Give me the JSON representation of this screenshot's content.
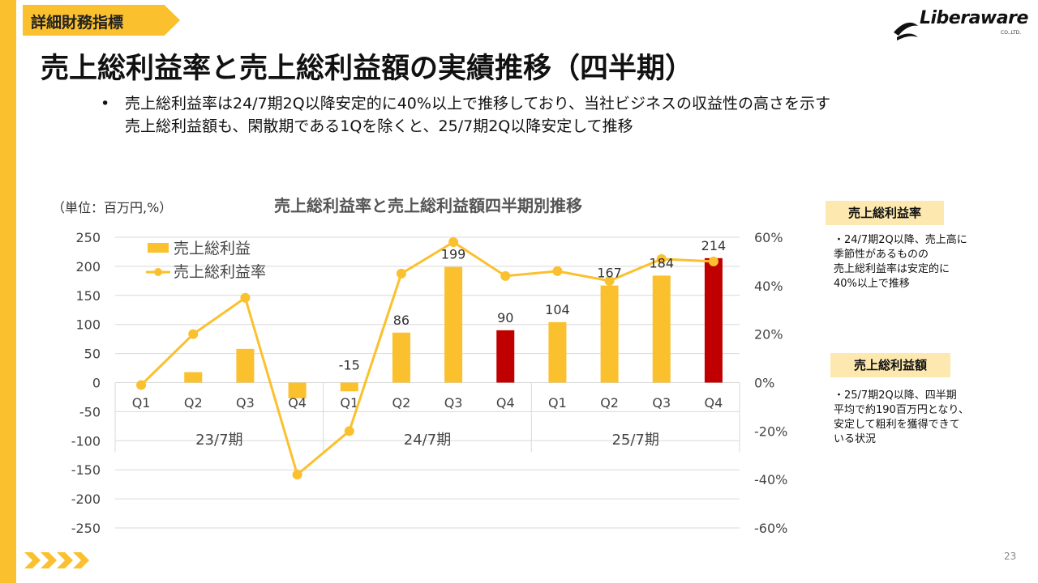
{
  "header": {
    "section_tag": "詳細財務指標",
    "title": "売上総利益率と売上総利益額の実績推移（四半期）",
    "logo_text": "Liberaware",
    "logo_sub": "CO.,LTD."
  },
  "bullets": {
    "marker": "•",
    "lines": [
      "売上総利益率は24/7期2Q以降安定的に40%以上で推移しており、当社ビジネスの収益性の高さを示す",
      "売上総利益額も、閑散期である1Qを除くと、25/7期2Q以降安定して推移"
    ]
  },
  "chart_data": {
    "type": "bar",
    "title": "売上総利益率と売上総利益額四半期別推移",
    "unit_note": "（単位：百万円,%）",
    "categories": [
      "Q1",
      "Q2",
      "Q3",
      "Q4",
      "Q1",
      "Q2",
      "Q3",
      "Q4",
      "Q1",
      "Q2",
      "Q3",
      "Q4"
    ],
    "groups": [
      {
        "label": "23/7期",
        "count": 4
      },
      {
        "label": "24/7期",
        "count": 4
      },
      {
        "label": "25/7期",
        "count": 4
      }
    ],
    "series": [
      {
        "name": "売上総利益",
        "type": "bar",
        "values": [
          0,
          18,
          58,
          -27,
          -15,
          86,
          199,
          90,
          104,
          167,
          184,
          214
        ],
        "data_labels": [
          "",
          "",
          "",
          "",
          "-15",
          "86",
          "199",
          "90",
          "104",
          "167",
          "184",
          "214"
        ],
        "highlight_indices": [
          7,
          11
        ]
      },
      {
        "name": "売上総利益率",
        "type": "line",
        "axis": "right",
        "values": [
          -1,
          20,
          35,
          -38,
          -20,
          45,
          58,
          44,
          46,
          42,
          51,
          50
        ]
      }
    ],
    "y_left": {
      "min": -250,
      "max": 250,
      "ticks": [
        250,
        200,
        150,
        100,
        50,
        0,
        -50,
        -100,
        -150,
        -200,
        -250
      ]
    },
    "y_right": {
      "min": -60,
      "max": 60,
      "ticks": [
        "60%",
        "40%",
        "20%",
        "0%",
        "-20%",
        "-40%",
        "-60%"
      ]
    },
    "legend_position": "top-left",
    "grid": true,
    "colors": {
      "bar": "#FBC02D",
      "bar_highlight": "#C00000",
      "line": "#FBC02D",
      "grid": "#D9D9D9"
    }
  },
  "side": {
    "margin_tag": "売上総利益率",
    "margin_lines": [
      "・24/7期2Q以降、売上高に",
      "季節性があるものの",
      "売上総利益率は安定的に",
      "40%以上で推移"
    ],
    "amount_tag": "売上総利益額",
    "amount_lines": [
      "・25/7期2Q以降、四半期",
      "平均で約190百万円となり、",
      "安定して粗利を獲得できて",
      "いる状況"
    ]
  },
  "footer": {
    "page_number": "23"
  }
}
